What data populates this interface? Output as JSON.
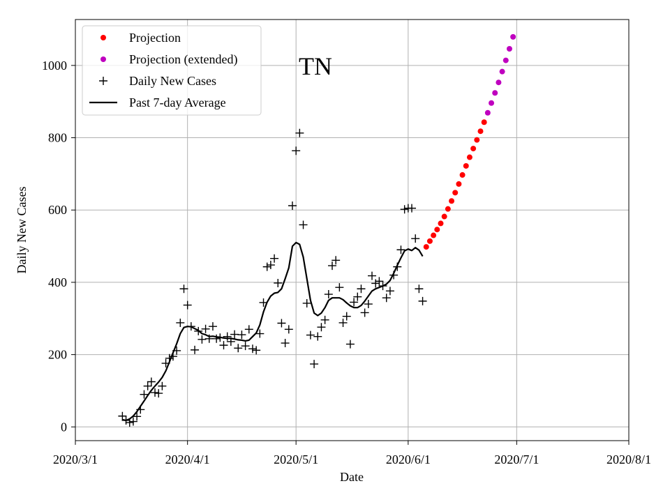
{
  "chart_data": {
    "type": "scatter",
    "title": "TN",
    "xlabel": "Date",
    "ylabel": "Daily New Cases",
    "x_ticks": [
      "2020/3/1",
      "2020/4/1",
      "2020/5/1",
      "2020/6/1",
      "2020/7/1",
      "2020/8/1"
    ],
    "x_tick_days": [
      0,
      31,
      61,
      92,
      122,
      153
    ],
    "xlim_days": [
      0,
      153
    ],
    "y_ticks": [
      0,
      200,
      400,
      600,
      800,
      1000
    ],
    "ylim": [
      -38,
      1127
    ],
    "grid": true,
    "legend_position": "upper-left",
    "x_day_origin": "2020/3/1",
    "series": [
      {
        "name": "Projection",
        "kind": "dots",
        "color": "#ff0000",
        "points": [
          [
            97,
            498
          ],
          [
            98,
            514
          ],
          [
            99,
            530
          ],
          [
            100,
            546
          ],
          [
            101,
            563
          ],
          [
            102,
            582
          ],
          [
            103,
            603
          ],
          [
            104,
            625
          ],
          [
            105,
            648
          ],
          [
            106,
            672
          ],
          [
            107,
            697
          ],
          [
            108,
            722
          ],
          [
            109,
            746
          ],
          [
            110,
            770
          ],
          [
            111,
            794
          ],
          [
            112,
            818
          ],
          [
            113,
            843
          ]
        ]
      },
      {
        "name": "Projection (extended)",
        "kind": "dots",
        "color": "#bf00bf",
        "points": [
          [
            114,
            869
          ],
          [
            115,
            896
          ],
          [
            116,
            924
          ],
          [
            117,
            953
          ],
          [
            118,
            983
          ],
          [
            119,
            1014
          ],
          [
            120,
            1046
          ],
          [
            121,
            1079
          ]
        ]
      },
      {
        "name": "Daily New Cases",
        "kind": "plus",
        "color": "#000000",
        "points": [
          [
            13,
            30
          ],
          [
            14,
            18
          ],
          [
            15,
            12
          ],
          [
            16,
            15
          ],
          [
            17,
            29
          ],
          [
            18,
            48
          ],
          [
            19,
            90
          ],
          [
            20,
            113
          ],
          [
            21,
            125
          ],
          [
            22,
            95
          ],
          [
            23,
            93
          ],
          [
            24,
            113
          ],
          [
            25,
            176
          ],
          [
            26,
            190
          ],
          [
            27,
            195
          ],
          [
            28,
            211
          ],
          [
            29,
            288
          ],
          [
            30,
            382
          ],
          [
            31,
            337
          ],
          [
            32,
            278
          ],
          [
            33,
            213
          ],
          [
            34,
            265
          ],
          [
            35,
            242
          ],
          [
            36,
            271
          ],
          [
            37,
            244
          ],
          [
            38,
            278
          ],
          [
            39,
            244
          ],
          [
            40,
            247
          ],
          [
            41,
            226
          ],
          [
            42,
            250
          ],
          [
            43,
            236
          ],
          [
            44,
            256
          ],
          [
            45,
            218
          ],
          [
            46,
            255
          ],
          [
            47,
            224
          ],
          [
            48,
            270
          ],
          [
            49,
            216
          ],
          [
            50,
            212
          ],
          [
            51,
            258
          ],
          [
            52,
            344
          ],
          [
            53,
            443
          ],
          [
            54,
            448
          ],
          [
            55,
            466
          ],
          [
            56,
            398
          ],
          [
            57,
            287
          ],
          [
            58,
            232
          ],
          [
            59,
            270
          ],
          [
            60,
            612
          ],
          [
            61,
            764
          ],
          [
            62,
            813
          ],
          [
            63,
            559
          ],
          [
            64,
            342
          ],
          [
            65,
            254
          ],
          [
            66,
            174
          ],
          [
            67,
            250
          ],
          [
            68,
            276
          ],
          [
            69,
            296
          ],
          [
            70,
            367
          ],
          [
            71,
            446
          ],
          [
            72,
            461
          ],
          [
            73,
            386
          ],
          [
            74,
            288
          ],
          [
            75,
            306
          ],
          [
            76,
            229
          ],
          [
            77,
            345
          ],
          [
            78,
            360
          ],
          [
            79,
            382
          ],
          [
            80,
            316
          ],
          [
            81,
            340
          ],
          [
            82,
            418
          ],
          [
            83,
            397
          ],
          [
            84,
            403
          ],
          [
            85,
            390
          ],
          [
            86,
            357
          ],
          [
            87,
            376
          ],
          [
            88,
            420
          ],
          [
            89,
            443
          ],
          [
            90,
            490
          ],
          [
            91,
            602
          ],
          [
            92,
            605
          ],
          [
            93,
            605
          ],
          [
            94,
            521
          ],
          [
            95,
            382
          ],
          [
            96,
            348
          ]
        ]
      },
      {
        "name": "Past 7-day Average",
        "kind": "line",
        "color": "#000000",
        "points": [
          [
            13,
            20
          ],
          [
            14,
            18
          ],
          [
            15,
            22
          ],
          [
            16,
            30
          ],
          [
            17,
            42
          ],
          [
            18,
            57
          ],
          [
            19,
            72
          ],
          [
            20,
            87
          ],
          [
            21,
            101
          ],
          [
            22,
            113
          ],
          [
            23,
            124
          ],
          [
            24,
            137
          ],
          [
            25,
            155
          ],
          [
            26,
            180
          ],
          [
            27,
            205
          ],
          [
            28,
            230
          ],
          [
            29,
            258
          ],
          [
            30,
            275
          ],
          [
            31,
            278
          ],
          [
            32,
            277
          ],
          [
            33,
            272
          ],
          [
            34,
            267
          ],
          [
            35,
            258
          ],
          [
            36,
            255
          ],
          [
            37,
            250
          ],
          [
            38,
            251
          ],
          [
            39,
            249
          ],
          [
            40,
            248
          ],
          [
            41,
            246
          ],
          [
            42,
            245
          ],
          [
            43,
            245
          ],
          [
            44,
            243
          ],
          [
            45,
            241
          ],
          [
            46,
            240
          ],
          [
            47,
            238
          ],
          [
            48,
            240
          ],
          [
            49,
            250
          ],
          [
            50,
            260
          ],
          [
            51,
            282
          ],
          [
            52,
            318
          ],
          [
            53,
            345
          ],
          [
            54,
            362
          ],
          [
            55,
            370
          ],
          [
            56,
            372
          ],
          [
            57,
            382
          ],
          [
            58,
            410
          ],
          [
            59,
            440
          ],
          [
            60,
            500
          ],
          [
            61,
            510
          ],
          [
            62,
            505
          ],
          [
            63,
            470
          ],
          [
            64,
            410
          ],
          [
            65,
            350
          ],
          [
            66,
            315
          ],
          [
            67,
            308
          ],
          [
            68,
            315
          ],
          [
            69,
            330
          ],
          [
            70,
            350
          ],
          [
            71,
            357
          ],
          [
            72,
            357
          ],
          [
            73,
            357
          ],
          [
            74,
            352
          ],
          [
            75,
            343
          ],
          [
            76,
            335
          ],
          [
            77,
            330
          ],
          [
            78,
            330
          ],
          [
            79,
            336
          ],
          [
            80,
            348
          ],
          [
            81,
            362
          ],
          [
            82,
            376
          ],
          [
            83,
            382
          ],
          [
            84,
            386
          ],
          [
            85,
            390
          ],
          [
            86,
            395
          ],
          [
            87,
            405
          ],
          [
            88,
            425
          ],
          [
            89,
            447
          ],
          [
            90,
            468
          ],
          [
            91,
            487
          ],
          [
            92,
            492
          ],
          [
            93,
            488
          ],
          [
            94,
            496
          ],
          [
            95,
            489
          ],
          [
            96,
            472
          ]
        ]
      }
    ]
  }
}
